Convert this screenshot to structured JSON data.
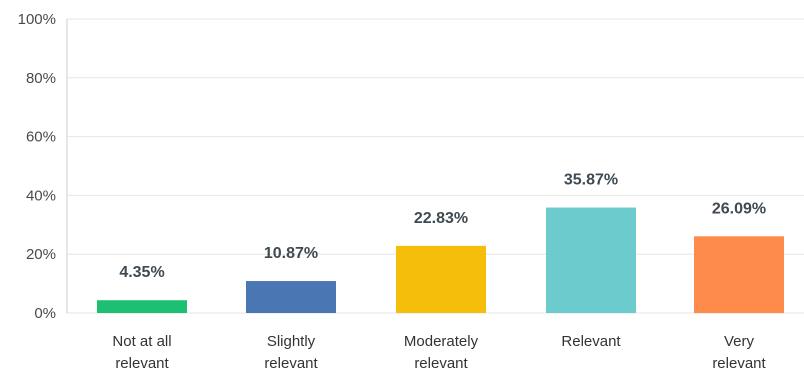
{
  "chart_data": {
    "type": "bar",
    "categories": [
      [
        "Not at all",
        "relevant"
      ],
      [
        "Slightly",
        "relevant"
      ],
      [
        "Moderately",
        "relevant"
      ],
      [
        "Relevant"
      ],
      [
        "Very",
        "relevant"
      ]
    ],
    "values": [
      4.35,
      10.87,
      22.83,
      35.87,
      26.09
    ],
    "data_labels": [
      "4.35%",
      "10.87%",
      "22.83%",
      "35.87%",
      "26.09%"
    ],
    "colors": [
      "#1dbf73",
      "#4a77b4",
      "#f5be0b",
      "#6ccbcc",
      "#fe8b4b"
    ],
    "ylim": [
      0,
      100
    ],
    "y_ticks": [
      0,
      20,
      40,
      60,
      80,
      100
    ],
    "y_tick_labels": [
      "0%",
      "20%",
      "40%",
      "60%",
      "80%",
      "100%"
    ],
    "grid": true,
    "title": "",
    "xlabel": "",
    "ylabel": ""
  }
}
